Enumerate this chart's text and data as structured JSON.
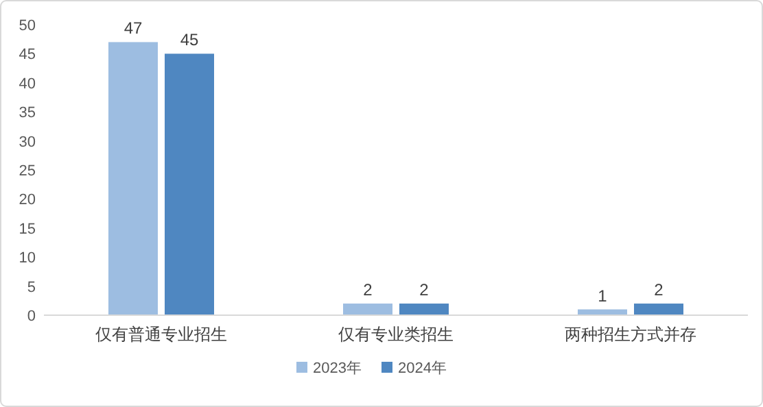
{
  "chart_data": {
    "type": "bar",
    "categories": [
      "仅有普通专业招生",
      "仅有专业类招生",
      "两种招生方式并存"
    ],
    "series": [
      {
        "name": "2023年",
        "color": "#9dbde1",
        "values": [
          47,
          2,
          1
        ]
      },
      {
        "name": "2024年",
        "color": "#4f87c1",
        "values": [
          45,
          2,
          2
        ]
      }
    ],
    "ylim": [
      0,
      50
    ],
    "yticks": [
      0,
      5,
      10,
      15,
      20,
      25,
      30,
      35,
      40,
      45,
      50
    ],
    "data_labels": true,
    "legend": "bottom"
  }
}
